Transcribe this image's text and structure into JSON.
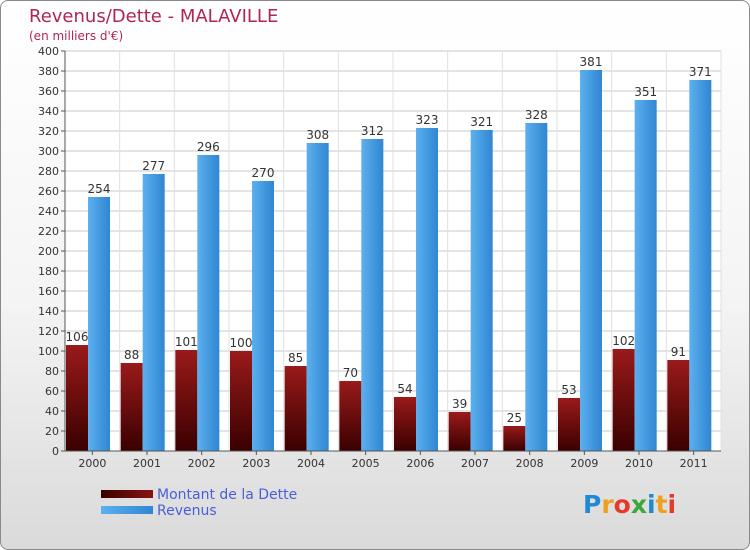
{
  "title": "Revenus/Dette - MALAVILLE",
  "subtitle": "(en milliers d'€)",
  "logo": "Proxiti",
  "colors": {
    "title": "#b0264e",
    "dette": "#7a1212",
    "revenus": "#3a96e0",
    "legend_text": "#4a5fd6"
  },
  "legend": [
    {
      "label": "Montant de la Dette",
      "color": "#6b0a0a"
    },
    {
      "label": "Revenus",
      "color": "#3a96e0"
    }
  ],
  "chart_data": {
    "type": "bar",
    "categories": [
      "2000",
      "2001",
      "2002",
      "2003",
      "2004",
      "2005",
      "2006",
      "2007",
      "2008",
      "2009",
      "2010",
      "2011"
    ],
    "series": [
      {
        "name": "Montant de la Dette",
        "values": [
          106,
          88,
          101,
          100,
          85,
          70,
          54,
          39,
          25,
          53,
          102,
          91
        ]
      },
      {
        "name": "Revenus",
        "values": [
          254,
          277,
          296,
          270,
          308,
          312,
          323,
          321,
          328,
          381,
          351,
          371
        ]
      }
    ],
    "ylim": [
      0,
      400
    ],
    "yticks": [
      0,
      20,
      40,
      60,
      80,
      100,
      120,
      140,
      160,
      180,
      200,
      220,
      240,
      260,
      280,
      300,
      320,
      340,
      360,
      380,
      400
    ],
    "grid": true,
    "legend_position": "bottom-left"
  }
}
